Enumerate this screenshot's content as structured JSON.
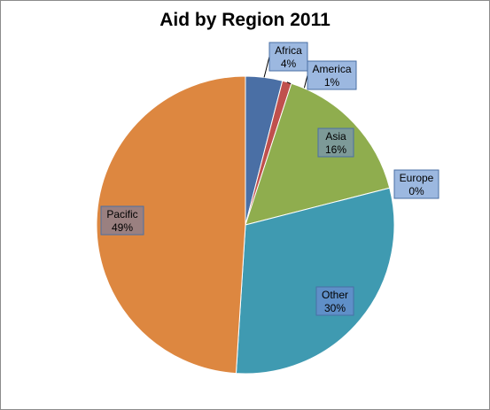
{
  "chart_data": {
    "type": "pie",
    "title": "Aid by Region 2011",
    "slices": [
      {
        "name": "Africa",
        "value": 4,
        "label": "4%",
        "color": "#4a6fa5",
        "label_bg": "#9cb8e0"
      },
      {
        "name": "America",
        "value": 1,
        "label": "1%",
        "color": "#c0504d",
        "label_bg": "#9cb8e0"
      },
      {
        "name": "Asia",
        "value": 16,
        "label": "16%",
        "color": "#8fad4e",
        "label_bg": "#7d9a98"
      },
      {
        "name": "Europe",
        "value": 0,
        "label": "0%",
        "color": "#5b7fc0",
        "label_bg": "#9cb8e0"
      },
      {
        "name": "Other",
        "value": 30,
        "label": "30%",
        "color": "#3f9ab1",
        "label_bg": "#5f8fc8"
      },
      {
        "name": "Pacific",
        "value": 49,
        "label": "49%",
        "color": "#dd8740",
        "label_bg": "#9a8080"
      }
    ],
    "legend": "none",
    "start_angle": "top",
    "direction": "clockwise"
  }
}
